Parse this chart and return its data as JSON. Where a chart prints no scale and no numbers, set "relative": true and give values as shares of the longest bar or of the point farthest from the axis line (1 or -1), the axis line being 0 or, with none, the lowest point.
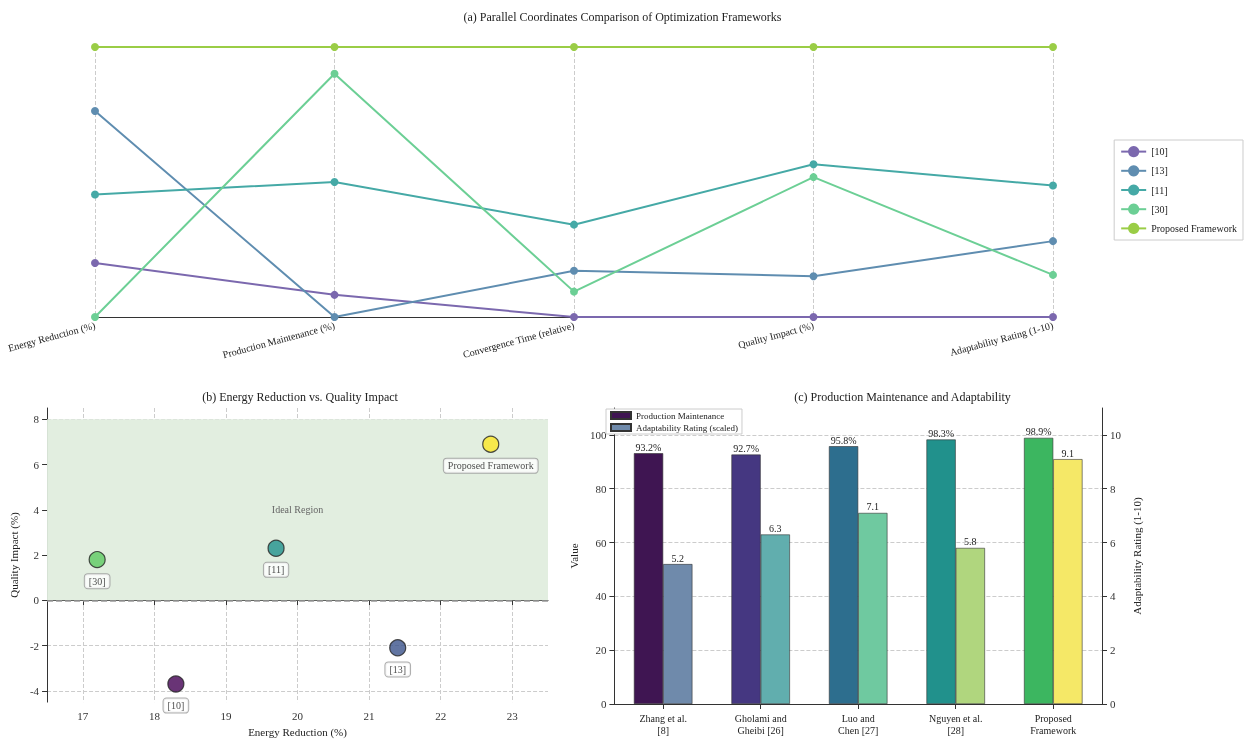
{
  "chart_data": [
    {
      "type": "line",
      "title": "(a) Parallel Coordinates Comparison of Optimization Frameworks",
      "categories": [
        "Energy Reduction (%)",
        "Production Maintenance (%)",
        "Convergence Time (relative)",
        "Quality Impact (%)",
        "Adaptability Rating (1-10)"
      ],
      "relative": true,
      "series": [
        {
          "name": "[10]",
          "color": "#7b68ae",
          "values": [
            0.2,
            0.082,
            0,
            0,
            0
          ]
        },
        {
          "name": "[13]",
          "color": "#5f8db0",
          "values": [
            0.763,
            0,
            0.171,
            0.151,
            0.281
          ]
        },
        {
          "name": "[11]",
          "color": "#45a9a6",
          "values": [
            0.454,
            0.5,
            0.342,
            0.566,
            0.487
          ]
        },
        {
          "name": "[30]",
          "color": "#6ccf95",
          "values": [
            0,
            0.901,
            0.094,
            0.518,
            0.156
          ]
        },
        {
          "name": "Proposed Framework",
          "color": "#9acd46",
          "values": [
            1,
            1,
            1,
            1,
            1
          ]
        }
      ],
      "grid": "x",
      "legend": "right",
      "marker": "circle",
      "line_style": "solid"
    },
    {
      "type": "scatter",
      "title": "(b) Energy Reduction vs. Quality Impact",
      "xlabel": "Energy Reduction (%)",
      "ylabel": "Quality Impact (%)",
      "xlim": [
        16.5,
        23.5
      ],
      "xticks": [
        17,
        18,
        19,
        20,
        21,
        22,
        23
      ],
      "ylim": [
        -4.5,
        8.5
      ],
      "yticks": [
        -4,
        -2,
        0,
        2,
        4,
        6,
        8
      ],
      "series": [
        {
          "name": "[10]",
          "color": "#440154",
          "x": [
            18.3
          ],
          "values": [
            -3.7
          ]
        },
        {
          "name": "[13]",
          "color": "#3b528b",
          "x": [
            21.4
          ],
          "values": [
            -2.1
          ]
        },
        {
          "name": "[11]",
          "color": "#21918c",
          "x": [
            19.7
          ],
          "values": [
            2.3
          ]
        },
        {
          "name": "[30]",
          "color": "#5ec962",
          "x": [
            17.2
          ],
          "values": [
            1.8
          ]
        },
        {
          "name": "Proposed Framework",
          "color": "#fde725",
          "x": [
            22.7
          ],
          "values": [
            6.9
          ]
        }
      ],
      "bands": [
        {
          "axis": "y",
          "from": 0,
          "to": 8,
          "label": "Ideal Region",
          "color": "#e2eee0"
        }
      ],
      "ref_lines": [
        {
          "axis": "y",
          "value": 0,
          "color": "#999999",
          "line_style": "dashed"
        }
      ],
      "grid": true,
      "marker": "circle"
    },
    {
      "type": "bar",
      "title": "(c) Production Maintenance and Adaptability",
      "ylabel": "Value",
      "y2label": "Adaptability Rating (1-10)",
      "categories": [
        "Zhang et al.\n[8]",
        "Gholami and\nGheibi [26]",
        "Luo and\nChen [27]",
        "Nguyen et al.\n[28]",
        "Proposed\nFramework"
      ],
      "ylim": [
        0,
        110
      ],
      "yticks": [
        0,
        20,
        40,
        60,
        80,
        100
      ],
      "y2lim": [
        0,
        11
      ],
      "y2ticks": [
        0,
        2,
        4,
        6,
        8,
        10
      ],
      "series": [
        {
          "name": "Production Maintenance",
          "colors": [
            "#3f1552",
            "#453781",
            "#2d6e8e",
            "#21918c",
            "#3cb660"
          ],
          "values": [
            93.2,
            92.7,
            95.8,
            98.3,
            98.9
          ],
          "value_labels": [
            "93.2%",
            "92.7%",
            "95.8%",
            "98.3%",
            "98.9%"
          ]
        },
        {
          "name": "Adaptability Rating (scaled)",
          "axis": "y2",
          "colors": [
            "#6f8aab",
            "#61aeae",
            "#6fc9a0",
            "#b0d67e",
            "#f5e867"
          ],
          "values": [
            5.2,
            6.3,
            7.1,
            5.8,
            9.1
          ],
          "value_labels": [
            "5.2",
            "6.3",
            "7.1",
            "5.8",
            "9.1"
          ]
        }
      ],
      "grid": "y",
      "legend": "top left"
    }
  ]
}
